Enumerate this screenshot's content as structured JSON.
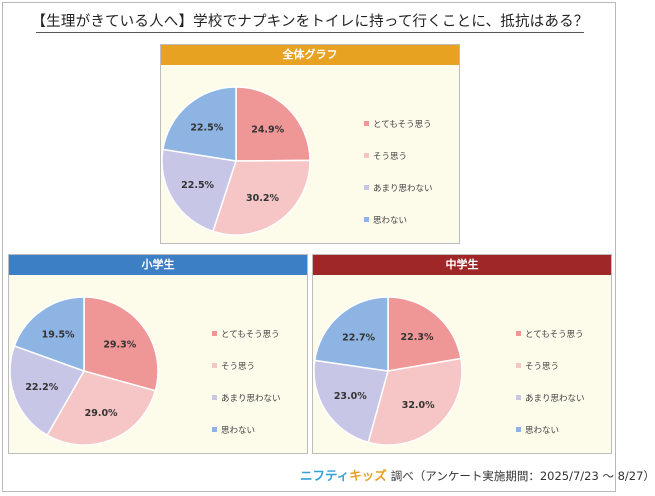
{
  "title": "【生理がきている人へ】学校でナプキンをトイレに持って行くことに、抵抗はある？",
  "footer": {
    "brand_part1": "ニフティ",
    "brand_part2": "キッズ",
    "note": "調べ（アンケート実施期間：2025/7/23 ～ 8/27）"
  },
  "colors": {
    "slices": [
      "#ef9696",
      "#f6c5c5",
      "#c7c6e6",
      "#8eb4e3"
    ],
    "header_overall": "#e8a221",
    "header_elementary": "#3d7fc4",
    "header_middle": "#a02727",
    "panel_bg": "#fdfbea"
  },
  "chart_data": [
    {
      "type": "pie",
      "title": "全体グラフ",
      "categories": [
        "とてもそう思う",
        "そう思う",
        "あまり思わない",
        "思わない"
      ],
      "values": [
        24.9,
        30.2,
        22.5,
        22.5
      ],
      "value_labels": [
        "24.9%",
        "30.2%",
        "22.5%",
        "22.5%"
      ],
      "legend": "right"
    },
    {
      "type": "pie",
      "title": "小学生",
      "categories": [
        "とてもそう思う",
        "そう思う",
        "あまり思わない",
        "思わない"
      ],
      "values": [
        29.3,
        29.0,
        22.2,
        19.5
      ],
      "value_labels": [
        "29.3%",
        "29.0%",
        "22.2%",
        "19.5%"
      ],
      "legend": "right"
    },
    {
      "type": "pie",
      "title": "中学生",
      "categories": [
        "とてもそう思う",
        "そう思う",
        "あまり思わない",
        "思わない"
      ],
      "values": [
        22.3,
        32.0,
        23.0,
        22.7
      ],
      "value_labels": [
        "22.3%",
        "32.0%",
        "23.0%",
        "22.7%"
      ],
      "legend": "right"
    }
  ]
}
